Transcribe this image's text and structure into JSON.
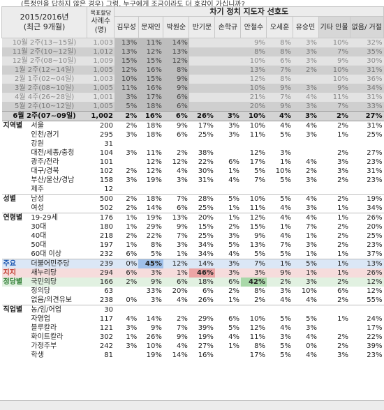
{
  "intro": "(특정인을 답하지 않은 경우) 그럼, 누구에게 조금이라도 더 호감이 가십니까?",
  "header": {
    "period_line1": "2015/2016년",
    "period_line2": "(최근 9개월)",
    "sample_small": "목표할당",
    "sample_line1": "사례수",
    "sample_line2": "(명)",
    "title": "차기 정치 지도자 선호도",
    "candidates": [
      "김무성",
      "문재인",
      "박원순",
      "반기문",
      "손학규",
      "안철수",
      "오세훈",
      "유승민",
      "기타 인물",
      "없음/ 거절"
    ]
  },
  "trend": [
    {
      "label": "10월 2주(13~15일)",
      "n": "1,003",
      "v": [
        "13%",
        "11%",
        "14%",
        "",
        "",
        "9%",
        "8%",
        "3%",
        "10%",
        "32%"
      ]
    },
    {
      "label": "11월 2주(10~12일)",
      "n": "1,012",
      "v": [
        "13%",
        "12%",
        "13%",
        "",
        "",
        "8%",
        "8%",
        "3%",
        "7%",
        "35%"
      ]
    },
    {
      "label": "12월 2주(08~10일)",
      "n": "1,009",
      "v": [
        "15%",
        "15%",
        "12%",
        "",
        "",
        "10%",
        "6%",
        "3%",
        "9%",
        "30%"
      ]
    },
    {
      "label": "1월 2주(12~14일)",
      "n": "1,005",
      "v": [
        "12%",
        "16%",
        "8%",
        "",
        "",
        "13%",
        "7%",
        "2%",
        "10%",
        "31%"
      ]
    },
    {
      "label": "2월 1주(02~04일)",
      "n": "1,003",
      "v": [
        "10%",
        "15%",
        "9%",
        "",
        "",
        "12%",
        "8%",
        "",
        "10%",
        "36%"
      ]
    },
    {
      "label": "3월 2주(08~10일)",
      "n": "1,005",
      "v": [
        "11%",
        "16%",
        "9%",
        "",
        "",
        "10%",
        "9%",
        "3%",
        "9%",
        "34%"
      ]
    },
    {
      "label": "4월 4주(26~28일)",
      "n": "1,001",
      "v": [
        "3%",
        "17%",
        "6%",
        "",
        "",
        "21%",
        "7%",
        "4%",
        "11%",
        "31%"
      ]
    },
    {
      "label": "5월 2주(10~12일)",
      "n": "1,005",
      "v": [
        "5%",
        "18%",
        "6%",
        "",
        "",
        "20%",
        "9%",
        "3%",
        "7%",
        "33%"
      ]
    }
  ],
  "current": {
    "label": "6월 2주(07~09일)",
    "n": "1,002",
    "v": [
      "2%",
      "16%",
      "6%",
      "26%",
      "3%",
      "10%",
      "4%",
      "3%",
      "2%",
      "27%"
    ]
  },
  "rows": [
    {
      "g": "지역별",
      "l": "서울",
      "n": "200",
      "v": [
        "2%",
        "18%",
        "9%",
        "17%",
        "3%",
        "10%",
        "4%",
        "4%",
        "2%",
        "31%"
      ]
    },
    {
      "g": "",
      "l": "인천/경기",
      "n": "295",
      "v": [
        "3%",
        "18%",
        "6%",
        "25%",
        "3%",
        "11%",
        "5%",
        "3%",
        "1%",
        "25%"
      ]
    },
    {
      "g": "",
      "l": "강원",
      "n": "31",
      "v": [
        "",
        "",
        "",
        "",
        "",
        "",
        "",
        "",
        "",
        ""
      ]
    },
    {
      "g": "",
      "l": "대전/세종/충청",
      "n": "104",
      "v": [
        "3%",
        "11%",
        "2%",
        "38%",
        "",
        "12%",
        "3%",
        "",
        "2%",
        "27%"
      ]
    },
    {
      "g": "",
      "l": "광주/전라",
      "n": "101",
      "v": [
        "",
        "12%",
        "12%",
        "22%",
        "6%",
        "17%",
        "1%",
        "4%",
        "3%",
        "23%"
      ]
    },
    {
      "g": "",
      "l": "대구/경북",
      "n": "102",
      "v": [
        "2%",
        "12%",
        "4%",
        "30%",
        "1%",
        "5%",
        "10%",
        "2%",
        "3%",
        "31%"
      ]
    },
    {
      "g": "",
      "l": "부산/울산/경남",
      "n": "158",
      "v": [
        "3%",
        "19%",
        "3%",
        "31%",
        "4%",
        "7%",
        "5%",
        "3%",
        "2%",
        "23%"
      ]
    },
    {
      "g": "",
      "l": "제주",
      "n": "12",
      "v": [
        "",
        "",
        "",
        "",
        "",
        "",
        "",
        "",
        "",
        ""
      ]
    },
    {
      "g": "성별",
      "l": "남성",
      "n": "500",
      "v": [
        "2%",
        "18%",
        "7%",
        "28%",
        "5%",
        "10%",
        "5%",
        "4%",
        "2%",
        "19%"
      ]
    },
    {
      "g": "",
      "l": "여성",
      "n": "502",
      "v": [
        "2%",
        "14%",
        "6%",
        "25%",
        "1%",
        "11%",
        "4%",
        "3%",
        "1%",
        "34%"
      ]
    },
    {
      "g": "연령별",
      "l": "19-29세",
      "n": "176",
      "v": [
        "1%",
        "19%",
        "13%",
        "20%",
        "1%",
        "12%",
        "4%",
        "4%",
        "1%",
        "26%"
      ]
    },
    {
      "g": "",
      "l": "30대",
      "n": "180",
      "v": [
        "1%",
        "29%",
        "9%",
        "15%",
        "2%",
        "15%",
        "1%",
        "7%",
        "2%",
        "20%"
      ]
    },
    {
      "g": "",
      "l": "40대",
      "n": "218",
      "v": [
        "2%",
        "22%",
        "7%",
        "25%",
        "3%",
        "9%",
        "4%",
        "1%",
        "2%",
        "25%"
      ]
    },
    {
      "g": "",
      "l": "50대",
      "n": "197",
      "v": [
        "1%",
        "8%",
        "3%",
        "34%",
        "5%",
        "13%",
        "7%",
        "3%",
        "2%",
        "23%"
      ]
    },
    {
      "g": "",
      "l": "60대 이상",
      "n": "232",
      "v": [
        "6%",
        "5%",
        "1%",
        "34%",
        "4%",
        "5%",
        "5%",
        "1%",
        "1%",
        "37%"
      ]
    },
    {
      "g": "주요",
      "l": "더불어민주당",
      "n": "239",
      "v": [
        "0%",
        "45%",
        "12%",
        "14%",
        "3%",
        "7%",
        "1%",
        "5%",
        "1%",
        "13%"
      ],
      "cls": "party-blue",
      "hl": [
        1
      ],
      "hlc": "hl-blue"
    },
    {
      "g": "지지",
      "l": "새누리당",
      "n": "294",
      "v": [
        "6%",
        "3%",
        "1%",
        "46%",
        "3%",
        "3%",
        "9%",
        "1%",
        "1%",
        "26%"
      ],
      "cls": "party-red",
      "hl": [
        3
      ],
      "hlc": "hl-red"
    },
    {
      "g": "정당별",
      "l": "국민의당",
      "n": "166",
      "v": [
        "2%",
        "9%",
        "6%",
        "18%",
        "6%",
        "42%",
        "2%",
        "3%",
        "2%",
        "12%"
      ],
      "cls": "party-green",
      "hl": [
        5
      ],
      "hlc": "hl-green"
    },
    {
      "g": "",
      "l": "정의당",
      "n": "63",
      "v": [
        "",
        "33%",
        "20%",
        "6%",
        "2%",
        "8%",
        "3%",
        "10%",
        "6%",
        "12%"
      ]
    },
    {
      "g": "",
      "l": "없음/의견유보",
      "n": "238",
      "v": [
        "0%",
        "3%",
        "4%",
        "26%",
        "1%",
        "2%",
        "4%",
        "4%",
        "2%",
        "55%"
      ]
    },
    {
      "g": "직업별",
      "l": "농/임/어업",
      "n": "30",
      "v": [
        "",
        "",
        "",
        "",
        "",
        "",
        "",
        "",
        "",
        ""
      ]
    },
    {
      "g": "",
      "l": "자영업",
      "n": "117",
      "v": [
        "4%",
        "14%",
        "2%",
        "29%",
        "6%",
        "10%",
        "5%",
        "5%",
        "1%",
        "24%"
      ]
    },
    {
      "g": "",
      "l": "블루칼라",
      "n": "121",
      "v": [
        "3%",
        "9%",
        "7%",
        "39%",
        "5%",
        "12%",
        "4%",
        "3%",
        "",
        "17%"
      ]
    },
    {
      "g": "",
      "l": "화이트칼라",
      "n": "302",
      "v": [
        "1%",
        "26%",
        "9%",
        "19%",
        "4%",
        "11%",
        "3%",
        "4%",
        "2%",
        "22%"
      ]
    },
    {
      "g": "",
      "l": "가정주부",
      "n": "242",
      "v": [
        "3%",
        "10%",
        "4%",
        "27%",
        "1%",
        "8%",
        "5%",
        "0%",
        "2%",
        "39%"
      ]
    },
    {
      "g": "",
      "l": "학생",
      "n": "81",
      "v": [
        "",
        "19%",
        "14%",
        "16%",
        "",
        "17%",
        "5%",
        "4%",
        "3%",
        "23%"
      ]
    }
  ]
}
